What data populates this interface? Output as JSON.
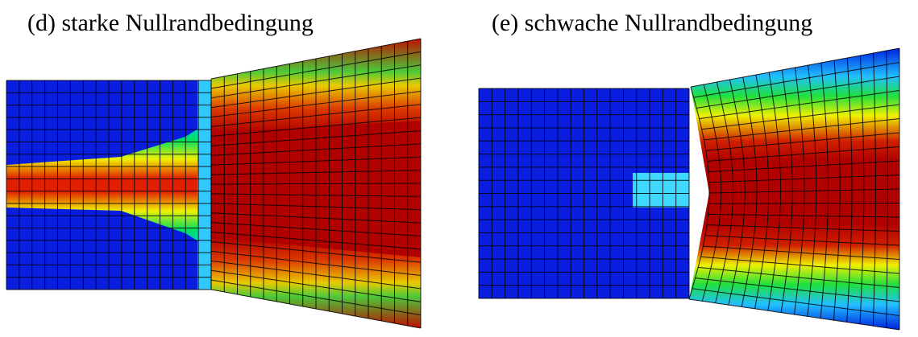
{
  "panels": [
    {
      "caption": "(d) starke Nullrandbedingung"
    },
    {
      "caption": "(e) schwache Nullrandbedingung"
    }
  ]
}
